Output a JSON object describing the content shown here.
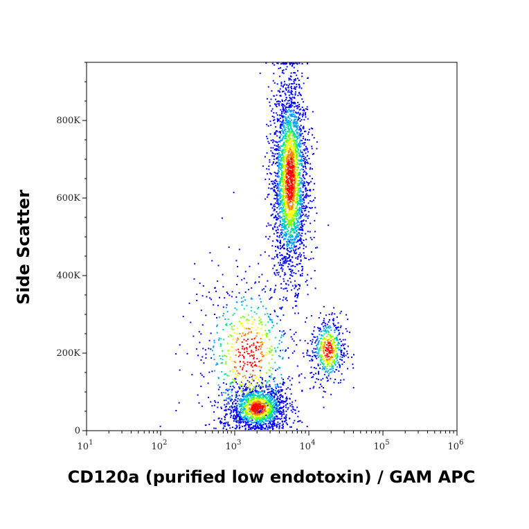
{
  "chart_data": {
    "type": "scatter",
    "title": "",
    "xlabel": "CD120a (purified low endotoxin) / GAM APC",
    "ylabel": "Side Scatter",
    "x_scale": "log",
    "xlim": [
      10,
      1000000
    ],
    "ylim": [
      0,
      950000
    ],
    "x_ticks": [
      {
        "base": "10",
        "exp": "1",
        "value": 10
      },
      {
        "base": "10",
        "exp": "2",
        "value": 100
      },
      {
        "base": "10",
        "exp": "3",
        "value": 1000
      },
      {
        "base": "10",
        "exp": "4",
        "value": 10000
      },
      {
        "base": "10",
        "exp": "5",
        "value": 100000
      },
      {
        "base": "10",
        "exp": "6",
        "value": 1000000
      }
    ],
    "y_ticks": [
      {
        "label": "0",
        "value": 0
      },
      {
        "label": "200K",
        "value": 200000
      },
      {
        "label": "400K",
        "value": 400000
      },
      {
        "label": "600K",
        "value": 600000
      },
      {
        "label": "800K",
        "value": 800000
      }
    ],
    "density_colormap": [
      "#0000ff",
      "#00a0ff",
      "#00e0a0",
      "#80ff00",
      "#ffff00",
      "#ff8000",
      "#ff0000"
    ],
    "populations": [
      {
        "x_center": 2000,
        "x_log_spread": 0.2,
        "y_center": 60000,
        "y_spread": 30000,
        "count": 1400
      },
      {
        "x_center": 5500,
        "x_log_spread": 0.12,
        "y_center": 650000,
        "y_spread": 130000,
        "count": 2600
      },
      {
        "x_center": 18000,
        "x_log_spread": 0.12,
        "y_center": 210000,
        "y_spread": 45000,
        "count": 500
      },
      {
        "x_center": 1500,
        "x_log_spread": 0.35,
        "y_center": 200000,
        "y_spread": 110000,
        "count": 700
      }
    ],
    "grid": false,
    "legend": "none"
  }
}
